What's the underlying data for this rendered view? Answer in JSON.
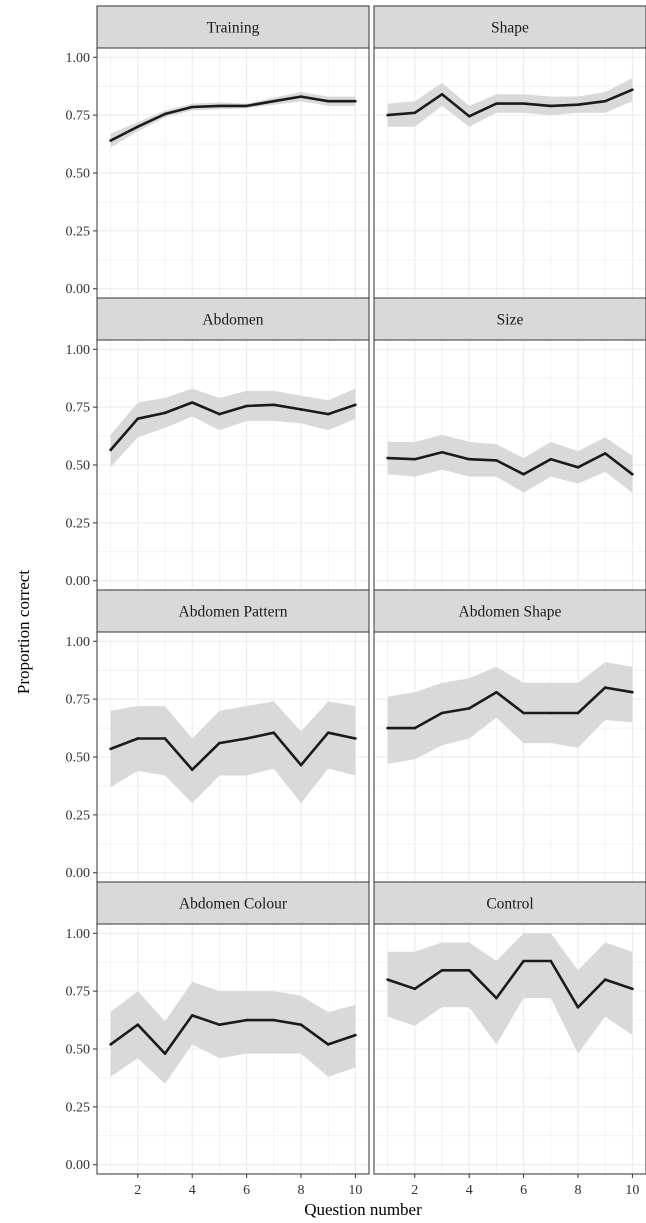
{
  "chart_data": {
    "type": "line",
    "xlabel": "Question number",
    "ylabel": "Proportion correct",
    "xlim": [
      0.5,
      10.5
    ],
    "ylim": [
      -0.04,
      1.04
    ],
    "x_ticks": [
      2,
      4,
      6,
      8,
      10
    ],
    "y_ticks": [
      0,
      0.25,
      0.5,
      0.75,
      1
    ],
    "x_tick_labels": [
      "2",
      "4",
      "6",
      "8",
      "10"
    ],
    "y_tick_labels": [
      "0.00",
      "0.25",
      "0.50",
      "0.75",
      "1.00"
    ],
    "grid": true,
    "x": [
      1,
      2,
      3,
      4,
      5,
      6,
      7,
      8,
      9,
      10
    ],
    "panels": [
      {
        "name": "Training",
        "values": [
          0.64,
          0.7,
          0.755,
          0.785,
          0.79,
          0.79,
          0.81,
          0.83,
          0.81,
          0.81
        ],
        "lower": [
          0.61,
          0.68,
          0.74,
          0.77,
          0.775,
          0.78,
          0.795,
          0.81,
          0.79,
          0.79
        ],
        "upper": [
          0.67,
          0.72,
          0.77,
          0.8,
          0.805,
          0.8,
          0.825,
          0.85,
          0.83,
          0.83
        ]
      },
      {
        "name": "Shape",
        "values": [
          0.75,
          0.76,
          0.84,
          0.745,
          0.8,
          0.8,
          0.79,
          0.795,
          0.81,
          0.86
        ],
        "lower": [
          0.7,
          0.7,
          0.79,
          0.7,
          0.76,
          0.76,
          0.75,
          0.76,
          0.76,
          0.81
        ],
        "upper": [
          0.8,
          0.81,
          0.89,
          0.79,
          0.84,
          0.84,
          0.83,
          0.83,
          0.85,
          0.91
        ]
      },
      {
        "name": "Abdomen",
        "values": [
          0.565,
          0.7,
          0.725,
          0.77,
          0.72,
          0.755,
          0.76,
          0.74,
          0.72,
          0.76
        ],
        "lower": [
          0.49,
          0.62,
          0.66,
          0.71,
          0.65,
          0.69,
          0.69,
          0.68,
          0.65,
          0.7
        ],
        "upper": [
          0.63,
          0.77,
          0.79,
          0.83,
          0.79,
          0.82,
          0.82,
          0.8,
          0.78,
          0.83
        ]
      },
      {
        "name": "Size",
        "values": [
          0.53,
          0.525,
          0.555,
          0.525,
          0.52,
          0.46,
          0.525,
          0.49,
          0.55,
          0.46
        ],
        "lower": [
          0.46,
          0.45,
          0.48,
          0.45,
          0.45,
          0.38,
          0.45,
          0.42,
          0.47,
          0.38
        ],
        "upper": [
          0.6,
          0.6,
          0.63,
          0.6,
          0.59,
          0.53,
          0.6,
          0.56,
          0.62,
          0.54
        ]
      },
      {
        "name": "Abdomen Pattern",
        "values": [
          0.535,
          0.58,
          0.58,
          0.445,
          0.56,
          0.58,
          0.605,
          0.465,
          0.605,
          0.58
        ],
        "lower": [
          0.37,
          0.44,
          0.42,
          0.3,
          0.42,
          0.42,
          0.45,
          0.3,
          0.45,
          0.42
        ],
        "upper": [
          0.7,
          0.72,
          0.72,
          0.58,
          0.7,
          0.72,
          0.74,
          0.61,
          0.74,
          0.72
        ]
      },
      {
        "name": "Abdomen Shape",
        "values": [
          0.625,
          0.625,
          0.69,
          0.71,
          0.78,
          0.69,
          0.69,
          0.69,
          0.8,
          0.78
        ],
        "lower": [
          0.47,
          0.49,
          0.55,
          0.58,
          0.67,
          0.56,
          0.56,
          0.54,
          0.66,
          0.65
        ],
        "upper": [
          0.76,
          0.78,
          0.82,
          0.84,
          0.89,
          0.82,
          0.82,
          0.82,
          0.91,
          0.89
        ]
      },
      {
        "name": "Abdomen Colour",
        "values": [
          0.52,
          0.605,
          0.48,
          0.645,
          0.605,
          0.625,
          0.625,
          0.605,
          0.52,
          0.56
        ],
        "lower": [
          0.38,
          0.46,
          0.35,
          0.52,
          0.46,
          0.48,
          0.48,
          0.48,
          0.38,
          0.42
        ],
        "upper": [
          0.66,
          0.75,
          0.62,
          0.79,
          0.75,
          0.75,
          0.75,
          0.73,
          0.66,
          0.69
        ]
      },
      {
        "name": "Control",
        "values": [
          0.8,
          0.76,
          0.84,
          0.84,
          0.72,
          0.88,
          0.88,
          0.68,
          0.8,
          0.76
        ],
        "lower": [
          0.64,
          0.6,
          0.68,
          0.68,
          0.52,
          0.72,
          0.72,
          0.48,
          0.64,
          0.56
        ],
        "upper": [
          0.92,
          0.92,
          0.96,
          0.96,
          0.88,
          1.0,
          1.0,
          0.84,
          0.96,
          0.92
        ]
      }
    ],
    "colors": {
      "line": "#1a1a1a",
      "ribbon": "#d9d9d9",
      "strip": "#d9d9d9",
      "grid": "#ebebeb",
      "border": "#333333"
    }
  }
}
